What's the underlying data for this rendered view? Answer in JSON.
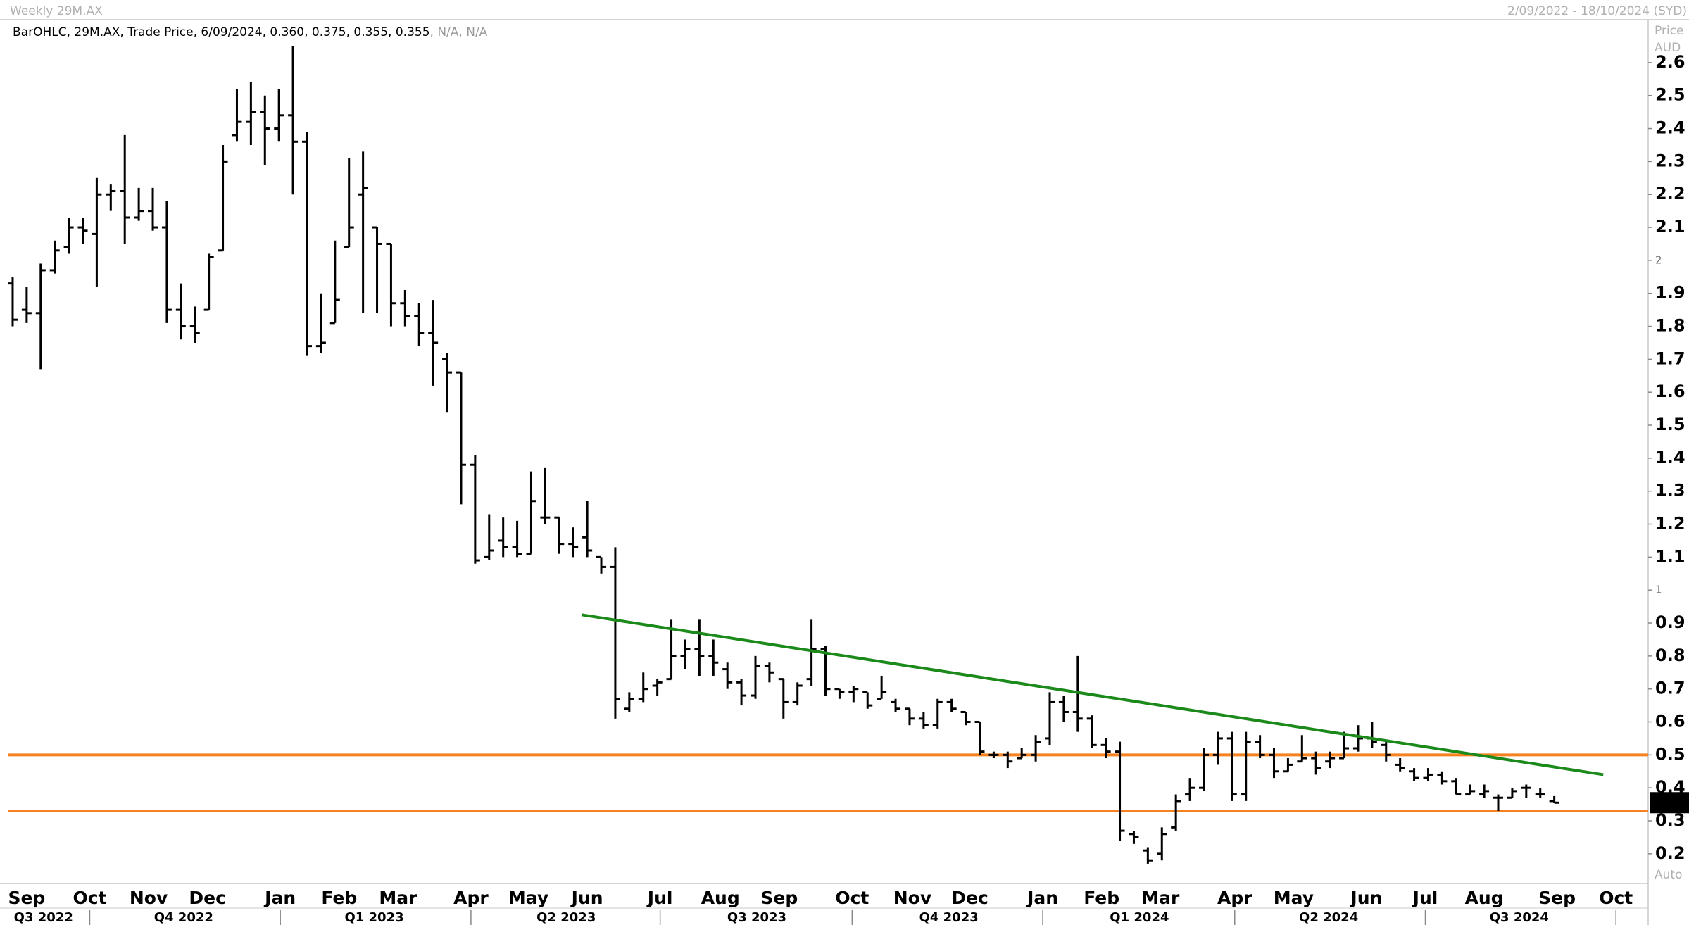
{
  "chart_data": {
    "type": "ohlc",
    "title": "Weekly 29M.AX",
    "date_range": "2/09/2022 - 18/10/2024 (SYD)",
    "legend": [
      "BarOHLC",
      "29M.AX",
      "Trade Price",
      "6/09/2024",
      "N/A",
      "N/A"
    ],
    "last_value_labels": [
      "0.360",
      "0.375",
      "0.355",
      "0.355"
    ],
    "y_axis_label": [
      "Price",
      "AUD"
    ],
    "scale_mode": "Auto",
    "color": "#000000",
    "bars": [
      [
        1.93,
        1.95,
        1.8,
        1.82
      ],
      [
        1.85,
        1.92,
        1.81,
        1.84
      ],
      [
        1.84,
        1.99,
        1.67,
        1.97
      ],
      [
        1.97,
        2.06,
        1.96,
        2.03
      ],
      [
        2.04,
        2.13,
        2.02,
        2.1
      ],
      [
        2.1,
        2.13,
        2.05,
        2.09
      ],
      [
        2.08,
        2.25,
        1.92,
        2.2
      ],
      [
        2.2,
        2.23,
        2.15,
        2.21
      ],
      [
        2.21,
        2.38,
        2.05,
        2.13
      ],
      [
        2.13,
        2.22,
        2.12,
        2.15
      ],
      [
        2.15,
        2.22,
        2.09,
        2.1
      ],
      [
        2.1,
        2.18,
        1.81,
        1.85
      ],
      [
        1.85,
        1.93,
        1.76,
        1.8
      ],
      [
        1.8,
        1.86,
        1.75,
        1.78
      ],
      [
        1.85,
        2.02,
        1.85,
        2.01
      ],
      [
        2.03,
        2.35,
        2.03,
        2.3
      ],
      [
        2.38,
        2.52,
        2.36,
        2.42
      ],
      [
        2.42,
        2.54,
        2.35,
        2.45
      ],
      [
        2.45,
        2.5,
        2.29,
        2.4
      ],
      [
        2.4,
        2.52,
        2.36,
        2.44
      ],
      [
        2.44,
        2.65,
        2.2,
        2.36
      ],
      [
        2.36,
        2.39,
        1.71,
        1.74
      ],
      [
        1.74,
        1.9,
        1.72,
        1.75
      ],
      [
        1.81,
        2.06,
        1.81,
        1.88
      ],
      [
        2.04,
        2.31,
        2.04,
        2.1
      ],
      [
        2.2,
        2.33,
        1.84,
        2.22
      ],
      [
        2.1,
        2.1,
        1.84,
        2.05
      ],
      [
        2.05,
        2.05,
        1.8,
        1.87
      ],
      [
        1.87,
        1.91,
        1.8,
        1.83
      ],
      [
        1.83,
        1.87,
        1.74,
        1.78
      ],
      [
        1.78,
        1.88,
        1.62,
        1.75
      ],
      [
        1.7,
        1.72,
        1.54,
        1.66
      ],
      [
        1.66,
        1.66,
        1.26,
        1.38
      ],
      [
        1.38,
        1.41,
        1.08,
        1.09
      ],
      [
        1.1,
        1.23,
        1.09,
        1.12
      ],
      [
        1.15,
        1.22,
        1.1,
        1.13
      ],
      [
        1.13,
        1.21,
        1.1,
        1.11
      ],
      [
        1.11,
        1.36,
        1.11,
        1.27
      ],
      [
        1.22,
        1.37,
        1.2,
        1.22
      ],
      [
        1.22,
        1.22,
        1.11,
        1.14
      ],
      [
        1.14,
        1.19,
        1.1,
        1.13
      ],
      [
        1.16,
        1.27,
        1.1,
        1.12
      ],
      [
        1.1,
        1.1,
        1.05,
        1.07
      ],
      [
        1.07,
        1.13,
        0.61,
        0.67
      ],
      [
        0.64,
        0.69,
        0.63,
        0.67
      ],
      [
        0.67,
        0.75,
        0.66,
        0.7
      ],
      [
        0.71,
        0.73,
        0.68,
        0.72
      ],
      [
        0.73,
        0.91,
        0.73,
        0.8
      ],
      [
        0.8,
        0.85,
        0.76,
        0.82
      ],
      [
        0.82,
        0.91,
        0.74,
        0.8
      ],
      [
        0.8,
        0.85,
        0.74,
        0.78
      ],
      [
        0.76,
        0.78,
        0.7,
        0.72
      ],
      [
        0.72,
        0.73,
        0.65,
        0.68
      ],
      [
        0.68,
        0.8,
        0.67,
        0.77
      ],
      [
        0.77,
        0.78,
        0.72,
        0.75
      ],
      [
        0.73,
        0.73,
        0.61,
        0.66
      ],
      [
        0.66,
        0.72,
        0.65,
        0.71
      ],
      [
        0.73,
        0.91,
        0.71,
        0.82
      ],
      [
        0.82,
        0.83,
        0.68,
        0.7
      ],
      [
        0.7,
        0.7,
        0.67,
        0.69
      ],
      [
        0.69,
        0.71,
        0.66,
        0.7
      ],
      [
        0.69,
        0.69,
        0.64,
        0.65
      ],
      [
        0.67,
        0.74,
        0.67,
        0.69
      ],
      [
        0.66,
        0.67,
        0.63,
        0.64
      ],
      [
        0.64,
        0.64,
        0.59,
        0.61
      ],
      [
        0.61,
        0.63,
        0.58,
        0.59
      ],
      [
        0.59,
        0.67,
        0.58,
        0.66
      ],
      [
        0.66,
        0.67,
        0.63,
        0.64
      ],
      [
        0.63,
        0.63,
        0.59,
        0.6
      ],
      [
        0.6,
        0.6,
        0.5,
        0.51
      ],
      [
        0.5,
        0.51,
        0.49,
        0.5
      ],
      [
        0.5,
        0.51,
        0.46,
        0.48
      ],
      [
        0.49,
        0.52,
        0.49,
        0.5
      ],
      [
        0.5,
        0.56,
        0.48,
        0.54
      ],
      [
        0.55,
        0.69,
        0.53,
        0.66
      ],
      [
        0.66,
        0.68,
        0.6,
        0.63
      ],
      [
        0.63,
        0.8,
        0.57,
        0.61
      ],
      [
        0.61,
        0.62,
        0.52,
        0.53
      ],
      [
        0.53,
        0.55,
        0.49,
        0.51
      ],
      [
        0.51,
        0.54,
        0.24,
        0.27
      ],
      [
        0.26,
        0.27,
        0.23,
        0.25
      ],
      [
        0.21,
        0.22,
        0.17,
        0.18
      ],
      [
        0.2,
        0.28,
        0.18,
        0.26
      ],
      [
        0.28,
        0.38,
        0.27,
        0.36
      ],
      [
        0.38,
        0.43,
        0.36,
        0.4
      ],
      [
        0.4,
        0.52,
        0.39,
        0.5
      ],
      [
        0.5,
        0.57,
        0.47,
        0.55
      ],
      [
        0.55,
        0.57,
        0.36,
        0.38
      ],
      [
        0.38,
        0.57,
        0.36,
        0.54
      ],
      [
        0.54,
        0.56,
        0.49,
        0.5
      ],
      [
        0.5,
        0.52,
        0.43,
        0.45
      ],
      [
        0.45,
        0.49,
        0.45,
        0.47
      ],
      [
        0.48,
        0.56,
        0.48,
        0.49
      ],
      [
        0.49,
        0.51,
        0.44,
        0.46
      ],
      [
        0.48,
        0.51,
        0.46,
        0.49
      ],
      [
        0.49,
        0.57,
        0.49,
        0.52
      ],
      [
        0.52,
        0.59,
        0.51,
        0.55
      ],
      [
        0.55,
        0.6,
        0.52,
        0.54
      ],
      [
        0.53,
        0.54,
        0.48,
        0.5
      ],
      [
        0.47,
        0.49,
        0.45,
        0.46
      ],
      [
        0.45,
        0.46,
        0.42,
        0.43
      ],
      [
        0.43,
        0.46,
        0.42,
        0.44
      ],
      [
        0.44,
        0.45,
        0.41,
        0.42
      ],
      [
        0.42,
        0.43,
        0.38,
        0.38
      ],
      [
        0.38,
        0.41,
        0.38,
        0.39
      ],
      [
        0.38,
        0.41,
        0.37,
        0.39
      ],
      [
        0.37,
        0.38,
        0.33,
        0.37
      ],
      [
        0.37,
        0.4,
        0.37,
        0.39
      ],
      [
        0.4,
        0.41,
        0.37,
        0.4
      ],
      [
        0.38,
        0.4,
        0.37,
        0.38
      ],
      [
        0.36,
        0.375,
        0.355,
        0.355
      ]
    ],
    "trendline": {
      "x": [
        40.6,
        113.5
      ],
      "y": [
        0.925,
        0.44
      ],
      "color": "#1b8a1b"
    },
    "hlines": [
      {
        "value": 0.5,
        "color": "#f5821f"
      },
      {
        "value": 0.33,
        "color": "#f5821f"
      }
    ],
    "xlim": [
      -0.3,
      116.7
    ],
    "ylim": [
      0.11,
      2.73
    ],
    "yticks": [
      2.6,
      2.5,
      2.4,
      2.3,
      2.2,
      2.1,
      2,
      1.9,
      1.8,
      1.7,
      1.6,
      1.5,
      1.4,
      1.3,
      1.2,
      1.1,
      1,
      0.9,
      0.8,
      0.7,
      0.6,
      0.5,
      0.4,
      0.3,
      0.2
    ],
    "minor_yticks": [
      2,
      1
    ],
    "xticks": [
      {
        "value": 1.0,
        "label": "Sep"
      },
      {
        "value": 5.5,
        "label": "Oct"
      },
      {
        "value": 9.7,
        "label": "Nov"
      },
      {
        "value": 13.9,
        "label": "Dec"
      },
      {
        "value": 19.1,
        "label": "Jan"
      },
      {
        "value": 23.3,
        "label": "Feb"
      },
      {
        "value": 27.5,
        "label": "Mar"
      },
      {
        "value": 32.7,
        "label": "Apr"
      },
      {
        "value": 36.8,
        "label": "May"
      },
      {
        "value": 41.0,
        "label": "Jun"
      },
      {
        "value": 46.2,
        "label": "Jul"
      },
      {
        "value": 50.5,
        "label": "Aug"
      },
      {
        "value": 54.7,
        "label": "Sep"
      },
      {
        "value": 59.9,
        "label": "Oct"
      },
      {
        "value": 64.2,
        "label": "Nov"
      },
      {
        "value": 68.3,
        "label": "Dec"
      },
      {
        "value": 73.5,
        "label": "Jan"
      },
      {
        "value": 77.7,
        "label": "Feb"
      },
      {
        "value": 81.9,
        "label": "Mar"
      },
      {
        "value": 87.2,
        "label": "Apr"
      },
      {
        "value": 91.4,
        "label": "May"
      },
      {
        "value": 96.6,
        "label": "Jun"
      },
      {
        "value": 100.8,
        "label": "Jul"
      },
      {
        "value": 105.0,
        "label": "Aug"
      },
      {
        "value": 110.2,
        "label": "Sep"
      },
      {
        "value": 114.4,
        "label": "Oct"
      }
    ],
    "quarters": [
      {
        "value": 2.2,
        "label": "Q3 2022"
      },
      {
        "value": 12.2,
        "label": "Q4 2022"
      },
      {
        "value": 25.8,
        "label": "Q1 2023"
      },
      {
        "value": 39.5,
        "label": "Q2 2023"
      },
      {
        "value": 53.1,
        "label": "Q3 2023"
      },
      {
        "value": 66.8,
        "label": "Q4 2023"
      },
      {
        "value": 80.4,
        "label": "Q1 2024"
      },
      {
        "value": 93.9,
        "label": "Q2 2024"
      },
      {
        "value": 107.5,
        "label": "Q3 2024"
      }
    ],
    "quarter_bounds": [
      5.5,
      19.1,
      32.7,
      46.2,
      59.9,
      73.5,
      87.2,
      100.8,
      114.4
    ]
  }
}
